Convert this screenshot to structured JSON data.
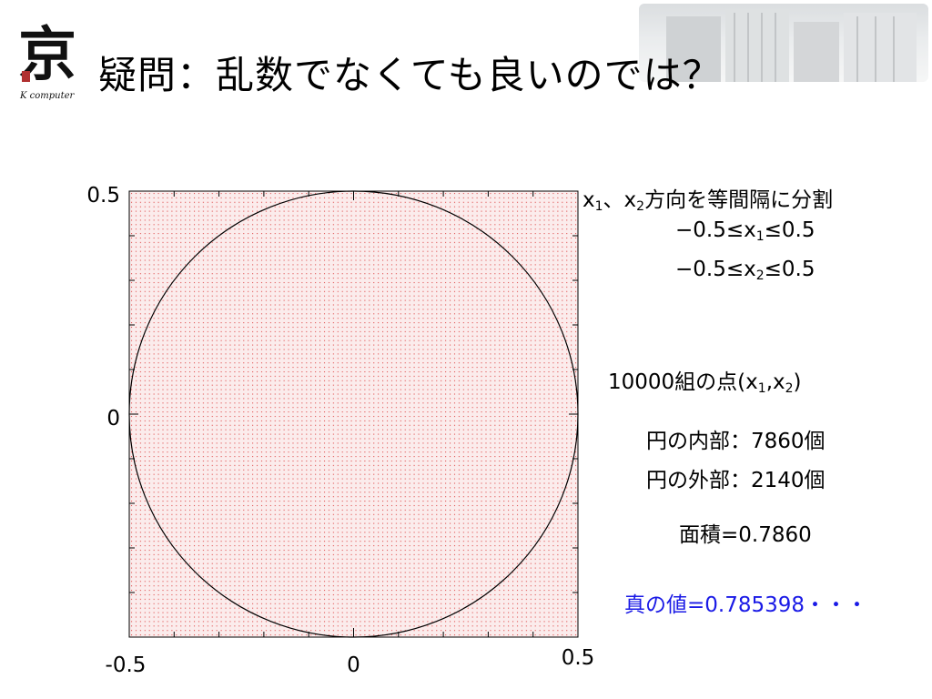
{
  "logo": {
    "glyph": "京",
    "subtitle": "K computer"
  },
  "title": "疑問：乱数でなくても良いのでは？",
  "notes": {
    "grid_line1_a": "x",
    "grid_line1_sub1": "1",
    "grid_line1_b": "、x",
    "grid_line1_sub2": "2",
    "grid_line1_c": "方向を等間隔に分割",
    "range1_a": "−0.5≤x",
    "range1_sub": "1",
    "range1_b": "≤0.5",
    "range2_a": "−0.5≤x",
    "range2_sub": "2",
    "range2_b": "≤0.5",
    "points_a": "10000組の点(x",
    "points_sub1": "1",
    "points_b": ",x",
    "points_sub2": "2",
    "points_c": ")",
    "inside": "円の内部：7860個",
    "outside": "円の外部：2140個",
    "area": "面積=0.7860",
    "true_value": "真の値=0.785398・・・"
  },
  "colors": {
    "grid_points": "#e05050",
    "true_value": "#1a1ae6",
    "circle": "#000000"
  },
  "chart_data": {
    "type": "scatter",
    "description_points": "uniform 100 x 100 grid of points covering the square",
    "grid_n": 100,
    "xlim": [
      -0.5,
      0.5
    ],
    "ylim": [
      -0.5,
      0.5
    ],
    "circle": {
      "cx": 0,
      "cy": 0,
      "r": 0.5
    },
    "xticks": [
      -0.5,
      0,
      0.5
    ],
    "xtick_labels": [
      "-0.5",
      "0",
      "0.5"
    ],
    "yticks": [
      0,
      0.5
    ],
    "ytick_labels": [
      "0",
      "0.5"
    ]
  }
}
